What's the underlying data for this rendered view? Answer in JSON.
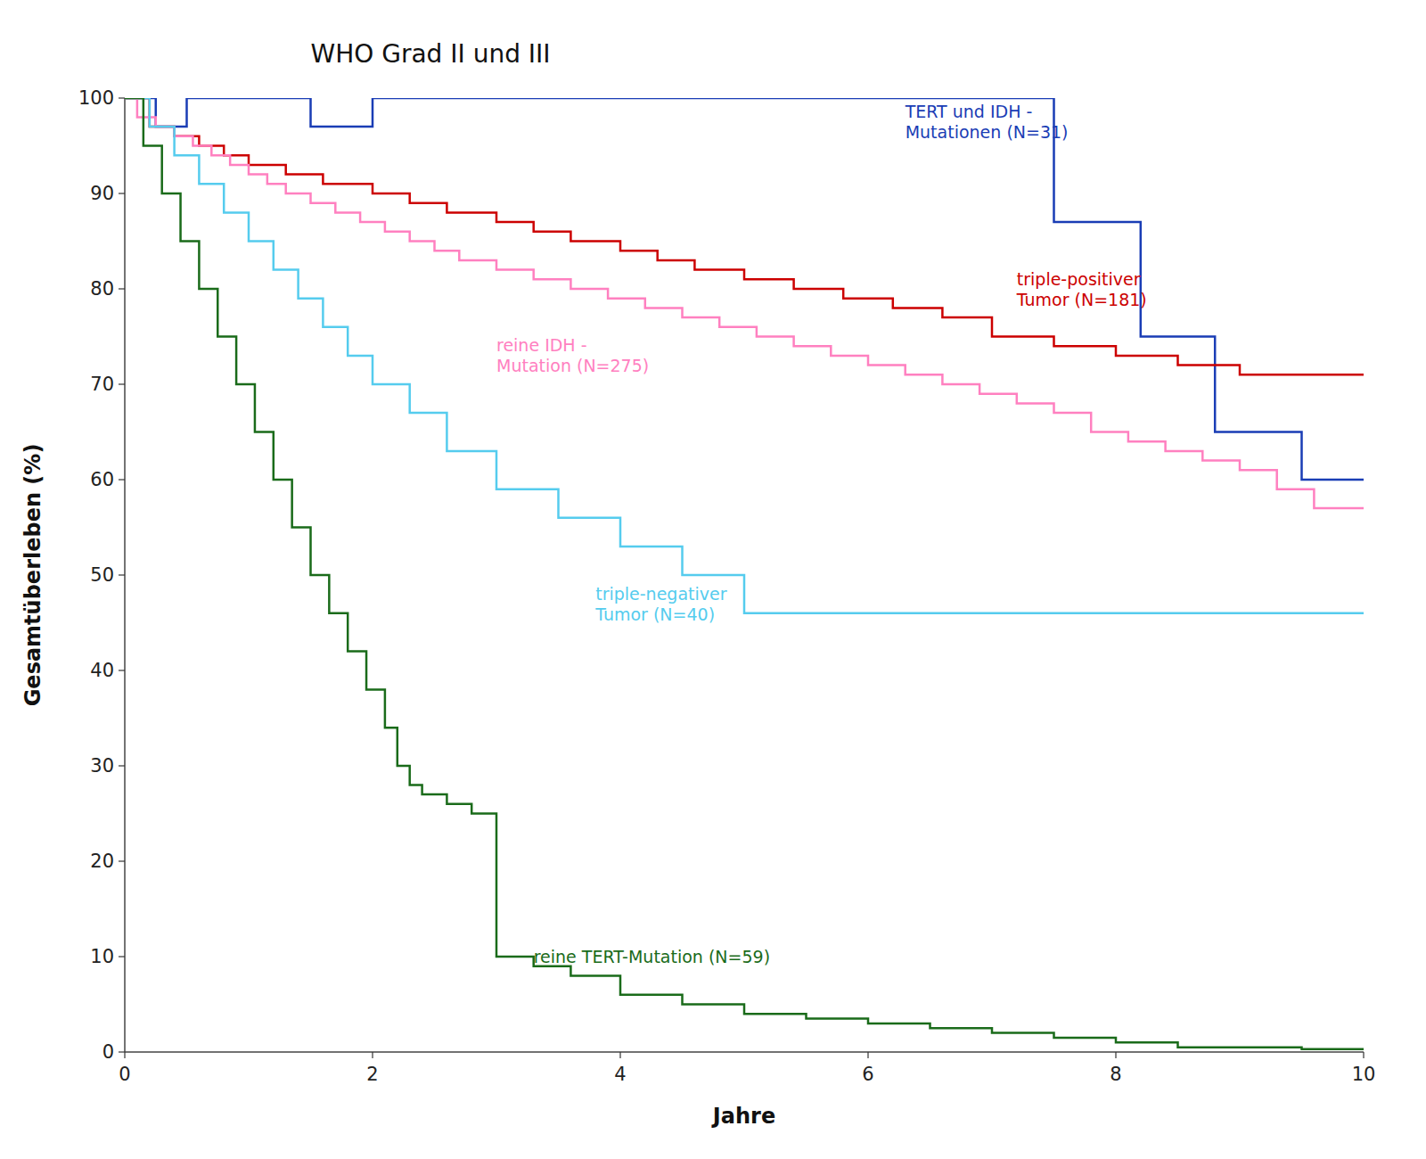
{
  "chart_data": {
    "type": "line",
    "title": "WHO Grad II und III",
    "xlabel": "Jahre",
    "ylabel": "Gesamtüberleben (%)",
    "xlim": [
      0,
      10
    ],
    "ylim": [
      0,
      100
    ],
    "xticks": [
      0,
      2,
      4,
      6,
      8,
      10
    ],
    "yticks": [
      0,
      10,
      20,
      30,
      40,
      50,
      60,
      70,
      80,
      90,
      100
    ],
    "grid": false,
    "series": [
      {
        "color": "#1a3db5",
        "x": [
          0,
          0.25,
          0.25,
          0.5,
          0.5,
          1.5,
          1.5,
          2.0,
          2.0,
          7.5,
          7.5,
          8.2,
          8.2,
          8.8,
          8.8,
          9.5,
          9.5,
          10.0
        ],
        "values": [
          100,
          100,
          97,
          97,
          100,
          100,
          97,
          97,
          100,
          100,
          87,
          87,
          75,
          75,
          65,
          65,
          60,
          60
        ]
      },
      {
        "color": "#cc0000",
        "x": [
          0,
          0.2,
          0.2,
          0.4,
          0.4,
          0.6,
          0.6,
          0.8,
          0.8,
          1.0,
          1.0,
          1.3,
          1.3,
          1.6,
          1.6,
          2.0,
          2.0,
          2.3,
          2.3,
          2.6,
          2.6,
          3.0,
          3.0,
          3.3,
          3.3,
          3.6,
          3.6,
          4.0,
          4.0,
          4.3,
          4.3,
          4.6,
          4.6,
          5.0,
          5.0,
          5.4,
          5.4,
          5.8,
          5.8,
          6.2,
          6.2,
          6.6,
          6.6,
          7.0,
          7.0,
          7.5,
          7.5,
          8.0,
          8.0,
          8.5,
          8.5,
          9.0,
          9.0,
          9.5,
          9.5,
          10.0
        ],
        "values": [
          100,
          100,
          97,
          97,
          96,
          96,
          95,
          95,
          94,
          94,
          93,
          93,
          92,
          92,
          91,
          91,
          90,
          90,
          89,
          89,
          88,
          88,
          87,
          87,
          86,
          86,
          85,
          85,
          84,
          84,
          83,
          83,
          82,
          82,
          81,
          81,
          80,
          80,
          79,
          79,
          78,
          78,
          77,
          77,
          75,
          75,
          74,
          74,
          73,
          73,
          72,
          72,
          71,
          71,
          71,
          71
        ]
      },
      {
        "color": "#ff80c0",
        "x": [
          0,
          0.1,
          0.1,
          0.25,
          0.25,
          0.4,
          0.4,
          0.55,
          0.55,
          0.7,
          0.7,
          0.85,
          0.85,
          1.0,
          1.0,
          1.15,
          1.15,
          1.3,
          1.3,
          1.5,
          1.5,
          1.7,
          1.7,
          1.9,
          1.9,
          2.1,
          2.1,
          2.3,
          2.3,
          2.5,
          2.5,
          2.7,
          2.7,
          3.0,
          3.0,
          3.3,
          3.3,
          3.6,
          3.6,
          3.9,
          3.9,
          4.2,
          4.2,
          4.5,
          4.5,
          4.8,
          4.8,
          5.1,
          5.1,
          5.4,
          5.4,
          5.7,
          5.7,
          6.0,
          6.0,
          6.3,
          6.3,
          6.6,
          6.6,
          6.9,
          6.9,
          7.2,
          7.2,
          7.5,
          7.5,
          7.8,
          7.8,
          8.1,
          8.1,
          8.4,
          8.4,
          8.7,
          8.7,
          9.0,
          9.0,
          9.3,
          9.3,
          9.6,
          9.6,
          10.0
        ],
        "values": [
          100,
          100,
          98,
          98,
          97,
          97,
          96,
          96,
          95,
          95,
          94,
          94,
          93,
          93,
          92,
          92,
          91,
          91,
          90,
          90,
          89,
          89,
          88,
          88,
          87,
          87,
          86,
          86,
          85,
          85,
          84,
          84,
          83,
          83,
          82,
          82,
          81,
          81,
          80,
          80,
          79,
          79,
          78,
          78,
          77,
          77,
          76,
          76,
          75,
          75,
          74,
          74,
          73,
          73,
          72,
          72,
          71,
          71,
          70,
          70,
          69,
          69,
          68,
          68,
          67,
          67,
          65,
          65,
          64,
          64,
          63,
          63,
          62,
          62,
          61,
          61,
          59,
          59,
          57,
          57
        ]
      },
      {
        "color": "#55ccee",
        "x": [
          0,
          0.2,
          0.2,
          0.4,
          0.4,
          0.6,
          0.6,
          0.8,
          0.8,
          1.0,
          1.0,
          1.2,
          1.2,
          1.4,
          1.4,
          1.6,
          1.6,
          1.8,
          1.8,
          2.0,
          2.0,
          2.3,
          2.3,
          2.6,
          2.6,
          3.0,
          3.0,
          3.5,
          3.5,
          4.0,
          4.0,
          4.5,
          4.5,
          5.0,
          5.0,
          9.0,
          9.0,
          10.0
        ],
        "values": [
          100,
          100,
          97,
          97,
          94,
          94,
          91,
          91,
          88,
          88,
          85,
          85,
          82,
          82,
          79,
          79,
          76,
          76,
          73,
          73,
          70,
          70,
          67,
          67,
          63,
          63,
          59,
          59,
          56,
          56,
          53,
          53,
          50,
          50,
          46,
          46,
          46,
          46
        ]
      },
      {
        "color": "#1a6b1a",
        "x": [
          0,
          0.15,
          0.15,
          0.3,
          0.3,
          0.45,
          0.45,
          0.6,
          0.6,
          0.75,
          0.75,
          0.9,
          0.9,
          1.05,
          1.05,
          1.2,
          1.2,
          1.35,
          1.35,
          1.5,
          1.5,
          1.65,
          1.65,
          1.8,
          1.8,
          1.95,
          1.95,
          2.1,
          2.1,
          2.2,
          2.2,
          2.3,
          2.3,
          2.4,
          2.4,
          2.6,
          2.6,
          2.8,
          2.8,
          3.0,
          3.0,
          3.3,
          3.3,
          3.6,
          3.6,
          4.0,
          4.0,
          4.5,
          4.5,
          5.0,
          5.0,
          5.5,
          5.5,
          6.0,
          6.0,
          6.5,
          6.5,
          7.0,
          7.0,
          7.5,
          7.5,
          8.0,
          8.0,
          8.5,
          8.5,
          9.5,
          9.5,
          10.0
        ],
        "values": [
          100,
          100,
          95,
          95,
          90,
          90,
          85,
          85,
          80,
          80,
          75,
          75,
          70,
          70,
          65,
          65,
          60,
          60,
          55,
          55,
          50,
          50,
          46,
          46,
          42,
          42,
          38,
          38,
          34,
          34,
          30,
          30,
          28,
          28,
          27,
          27,
          26,
          26,
          25,
          25,
          10,
          10,
          9,
          9,
          8,
          8,
          6,
          6,
          5,
          5,
          4,
          4,
          3.5,
          3.5,
          3,
          3,
          2.5,
          2.5,
          2,
          2,
          1.5,
          1.5,
          1,
          1,
          0.5,
          0.5,
          0.3,
          0.3
        ]
      }
    ],
    "annotations": [
      {
        "text": "TERT und IDH -\nMutationen (N=31)",
        "x": 6.3,
        "y": 97.5,
        "color": "#1a3db5"
      },
      {
        "text": "triple-positiver\nTumor (N=181)",
        "x": 7.2,
        "y": 80,
        "color": "#cc0000"
      },
      {
        "text": "reine IDH -\nMutation (N=275)",
        "x": 3.0,
        "y": 73,
        "color": "#ff80c0"
      },
      {
        "text": "triple-negativer\nTumor (N=40)",
        "x": 3.8,
        "y": 47,
        "color": "#55ccee"
      },
      {
        "text": "reine TERT-Mutation (N=59)",
        "x": 3.3,
        "y": 10,
        "color": "#1a6b1a"
      }
    ]
  }
}
